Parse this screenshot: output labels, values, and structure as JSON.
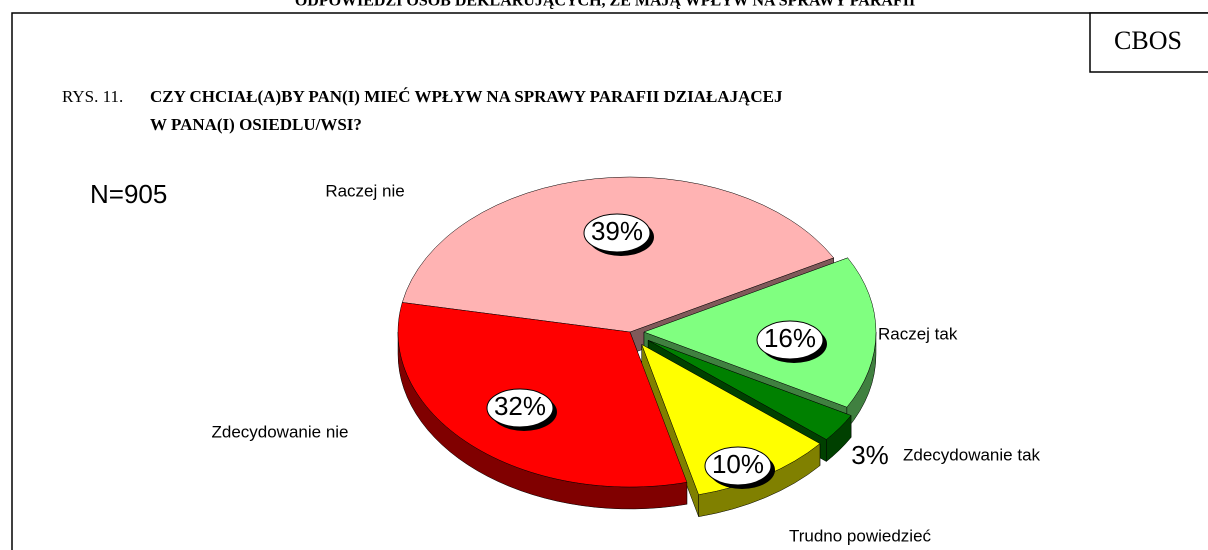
{
  "header": "ODPOWIEDZI OSÓB DEKLARUJĄCYCH, ŻE MAJĄ WPŁYW NA SPRAWY PARAFII",
  "badge": "CBOS",
  "chart_data": {
    "type": "pie",
    "figure_label": "RYS. 11.",
    "title": [
      "CZY CHCIAŁ(A)BY PAN(I) MIEĆ WPŁYW NA  SPRAWY PARAFII DZIAŁAJĄCEJ",
      "W PANA(I) OSIEDLU/WSI?"
    ],
    "annotation": "N=905",
    "categories": [
      "Raczej nie",
      "Raczej tak",
      "Zdecydowanie tak",
      "Trudno powiedzieć",
      "Zdecydowanie nie"
    ],
    "values": [
      39,
      16,
      3,
      10,
      32
    ],
    "value_labels": [
      "39%",
      "16%",
      "3%",
      "10%",
      "32%"
    ],
    "colors": [
      "#ffb3b3",
      "#80ff80",
      "#008000",
      "#ffff00",
      "#ff0000"
    ]
  }
}
